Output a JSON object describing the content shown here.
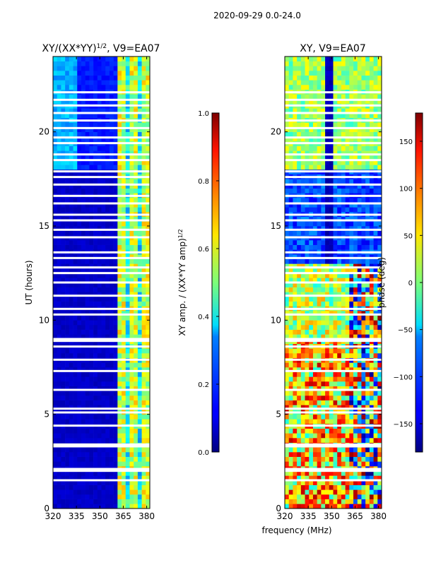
{
  "figure": {
    "suptitle": "2020-09-29 0.0-24.0",
    "xlabel": "frequency (MHz)"
  },
  "chart_data": [
    {
      "type": "heatmap",
      "title": "XY/(XX*YY)",
      "title_exponent": "1/2",
      "title_suffix": ", V9=EA07",
      "xlabel": "",
      "ylabel": "UT (hours)",
      "xlim": [
        320,
        382
      ],
      "ylim": [
        0,
        24
      ],
      "xticks": [
        320,
        335,
        350,
        365,
        380
      ],
      "yticks": [
        0,
        5,
        10,
        15,
        20
      ],
      "colorbar": {
        "label": "XY amp. / (XX*YY amp)",
        "label_exponent": "1/2",
        "range": [
          0.0,
          1.0
        ],
        "ticks": [
          0.0,
          0.2,
          0.4,
          0.6,
          0.8,
          1.0
        ],
        "tick_labels": [
          "0.0",
          "0.2",
          "0.4",
          "0.6",
          "0.8",
          "1.0"
        ],
        "colormap": "jet"
      },
      "summary": {
        "background_value": 0.05,
        "bright_band_mhz": [
          361,
          382
        ],
        "bright_band_value": 0.45,
        "enhanced_upper_rows_hours": [
          18,
          24
        ],
        "enhanced_upper_value_mhz_320_335": 0.25,
        "flag_gap_hours": [
          1.5,
          2.0,
          2.1,
          3.3,
          3.4,
          4.4,
          5.1,
          5.3,
          6.3,
          7.3,
          7.9,
          8.6,
          8.9,
          9.0,
          10.3,
          10.6,
          11.3,
          12.0,
          12.5,
          12.8,
          13.3,
          13.6,
          14.4,
          14.8,
          15.3,
          15.6,
          16.2,
          16.6,
          17.2,
          17.6,
          17.9,
          18.5,
          18.8,
          19.4,
          19.7,
          20.2,
          20.6,
          21.0,
          21.4,
          21.7,
          22.1
        ]
      }
    },
    {
      "type": "heatmap",
      "title": "XY, V9=EA07",
      "xlabel": "",
      "ylabel": "",
      "xlim": [
        320,
        382
      ],
      "ylim": [
        0,
        24
      ],
      "xticks": [
        320,
        335,
        350,
        365,
        380
      ],
      "yticks": [
        0,
        5,
        10,
        15,
        20
      ],
      "colorbar": {
        "label": "phase (deg)",
        "range": [
          -180,
          180
        ],
        "ticks": [
          -150,
          -100,
          -50,
          0,
          50,
          100,
          150
        ],
        "tick_labels": [
          "−150",
          "−100",
          "−50",
          "0",
          "50",
          "100",
          "150"
        ],
        "colormap": "jet"
      },
      "summary": {
        "upper_phase_deg": 10,
        "mid_phase_deg": -110,
        "lower_phase_deg": 60,
        "dark_column_mhz": [
          345,
          350
        ],
        "dark_column_phase_deg": -170,
        "flag_gap_hours": [
          1.5,
          2.0,
          2.1,
          3.3,
          3.4,
          4.4,
          5.1,
          5.3,
          6.3,
          7.3,
          7.9,
          8.6,
          8.9,
          9.0,
          10.3,
          10.6,
          11.3,
          12.0,
          12.5,
          12.8,
          13.3,
          13.6,
          14.4,
          14.8,
          15.3,
          15.6,
          16.2,
          16.6,
          17.2,
          17.6,
          17.9,
          18.5,
          18.8,
          19.4,
          19.7,
          20.2,
          20.6,
          21.0,
          21.4,
          21.7,
          22.1
        ]
      }
    }
  ]
}
